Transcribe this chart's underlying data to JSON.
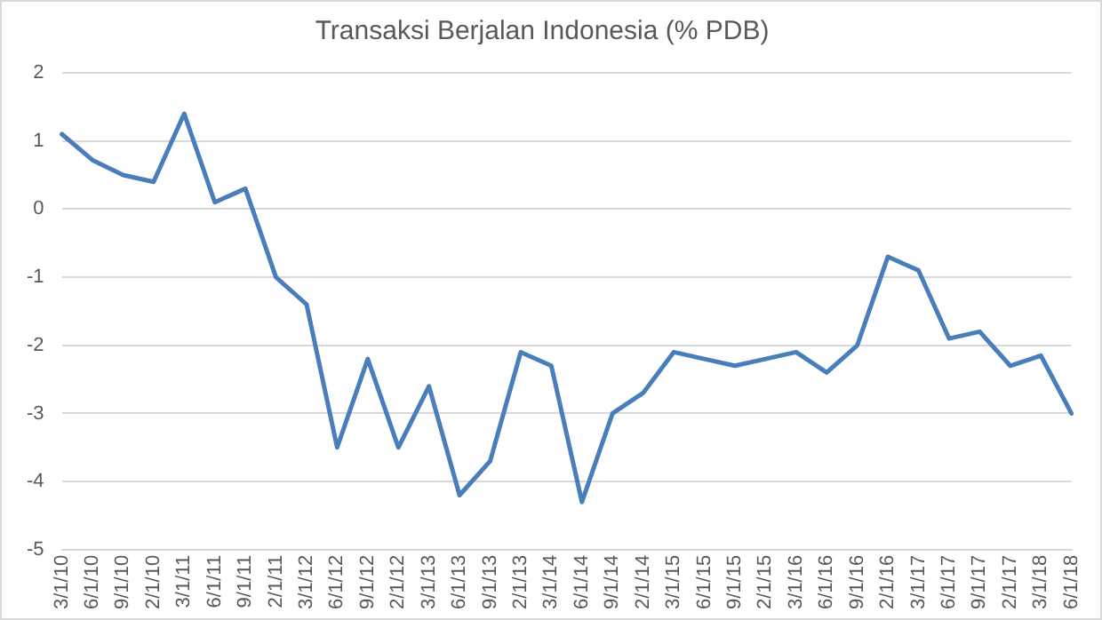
{
  "chart_data": {
    "type": "line",
    "title": "Transaksi Berjalan Indonesia (% PDB)",
    "categories": [
      "3/1/10",
      "6/1/10",
      "9/1/10",
      "2/1/10",
      "3/1/11",
      "6/1/11",
      "9/1/11",
      "2/1/11",
      "3/1/12",
      "6/1/12",
      "9/1/12",
      "2/1/12",
      "3/1/13",
      "6/1/13",
      "9/1/13",
      "2/1/13",
      "3/1/14",
      "6/1/14",
      "9/1/14",
      "2/1/14",
      "3/1/15",
      "6/1/15",
      "9/1/15",
      "2/1/15",
      "3/1/16",
      "6/1/16",
      "9/1/16",
      "2/1/16",
      "3/1/17",
      "6/1/17",
      "9/1/17",
      "2/1/17",
      "3/1/18",
      "6/1/18"
    ],
    "series": [
      {
        "color": "#4a7ebb",
        "values": [
          1.1,
          0.72,
          0.5,
          0.4,
          1.4,
          0.1,
          0.3,
          -1.0,
          -1.4,
          -3.5,
          -2.2,
          -3.5,
          -2.6,
          -4.2,
          -3.7,
          -2.1,
          -2.3,
          -4.3,
          -3.0,
          -2.7,
          -2.1,
          -2.2,
          -2.3,
          -2.2,
          -2.1,
          -2.4,
          -2.0,
          -0.7,
          -0.9,
          -1.9,
          -1.8,
          -2.3,
          -2.15,
          -3.0
        ]
      }
    ],
    "ylim": [
      -5,
      2
    ],
    "yticks": [
      -5,
      -4,
      -3,
      -2,
      -1,
      0,
      1,
      2
    ],
    "grid": "y",
    "legend": false,
    "marker": "none",
    "line_style": "solid"
  }
}
